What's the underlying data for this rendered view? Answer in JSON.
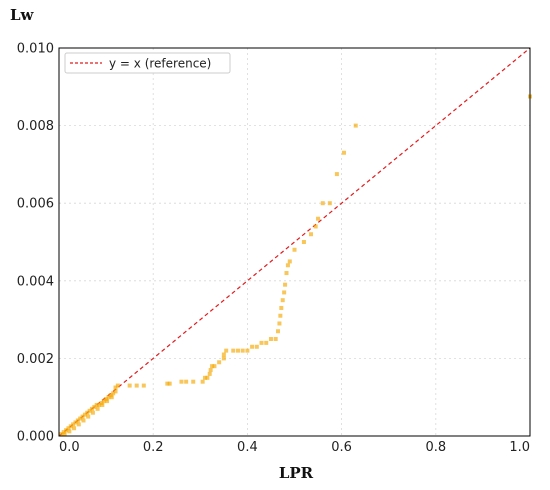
{
  "chart_data": {
    "type": "scatter",
    "title": "",
    "xlabel": "LPR",
    "ylabel": "Lw",
    "xlim": [
      0.0,
      1.0
    ],
    "ylim": [
      0.0,
      0.01
    ],
    "xticks": [
      "0.0",
      "0.2",
      "0.4",
      "0.6",
      "0.8",
      "1.0"
    ],
    "yticks": [
      "0.000",
      "0.002",
      "0.004",
      "0.006",
      "0.008",
      "0.010"
    ],
    "grid": true,
    "legend_position": "top-left",
    "reference_line": {
      "label": "y = x (reference)",
      "color": "#e41a1c",
      "style": "dashed",
      "from": [
        0,
        0
      ],
      "to": [
        1.0,
        0.01
      ]
    },
    "point_color": "#f5a800",
    "points": [
      [
        0.005,
        5e-05
      ],
      [
        0.01,
        0.0001
      ],
      [
        0.015,
        0.00015
      ],
      [
        0.02,
        0.0002
      ],
      [
        0.025,
        0.00025
      ],
      [
        0.03,
        0.0003
      ],
      [
        0.035,
        0.00035
      ],
      [
        0.04,
        0.0004
      ],
      [
        0.045,
        0.00045
      ],
      [
        0.05,
        0.0005
      ],
      [
        0.055,
        0.00055
      ],
      [
        0.06,
        0.0006
      ],
      [
        0.065,
        0.00065
      ],
      [
        0.07,
        0.0007
      ],
      [
        0.075,
        0.00075
      ],
      [
        0.08,
        0.0008
      ],
      [
        0.085,
        0.0008
      ],
      [
        0.09,
        0.00085
      ],
      [
        0.095,
        0.0009
      ],
      [
        0.1,
        0.00095
      ],
      [
        0.105,
        0.001
      ],
      [
        0.11,
        0.00105
      ],
      [
        0.115,
        0.0011
      ],
      [
        0.12,
        0.00115
      ],
      [
        0.012,
        5e-05
      ],
      [
        0.022,
        0.00012
      ],
      [
        0.032,
        0.0002
      ],
      [
        0.042,
        0.0003
      ],
      [
        0.052,
        0.0004
      ],
      [
        0.062,
        0.0005
      ],
      [
        0.072,
        0.0006
      ],
      [
        0.082,
        0.0007
      ],
      [
        0.092,
        0.0008
      ],
      [
        0.102,
        0.0009
      ],
      [
        0.112,
        0.001
      ],
      [
        0.12,
        0.00125
      ],
      [
        0.125,
        0.0013
      ],
      [
        0.15,
        0.0013
      ],
      [
        0.165,
        0.0013
      ],
      [
        0.18,
        0.0013
      ],
      [
        0.23,
        0.00135
      ],
      [
        0.235,
        0.00135
      ],
      [
        0.26,
        0.0014
      ],
      [
        0.27,
        0.0014
      ],
      [
        0.285,
        0.0014
      ],
      [
        0.305,
        0.0014
      ],
      [
        0.31,
        0.0015
      ],
      [
        0.315,
        0.0015
      ],
      [
        0.32,
        0.0016
      ],
      [
        0.322,
        0.0017
      ],
      [
        0.325,
        0.0018
      ],
      [
        0.33,
        0.0018
      ],
      [
        0.34,
        0.0019
      ],
      [
        0.35,
        0.002
      ],
      [
        0.35,
        0.0021
      ],
      [
        0.355,
        0.0022
      ],
      [
        0.37,
        0.0022
      ],
      [
        0.38,
        0.0022
      ],
      [
        0.39,
        0.0022
      ],
      [
        0.4,
        0.0022
      ],
      [
        0.41,
        0.0023
      ],
      [
        0.42,
        0.0023
      ],
      [
        0.43,
        0.0024
      ],
      [
        0.44,
        0.0024
      ],
      [
        0.45,
        0.0025
      ],
      [
        0.46,
        0.0025
      ],
      [
        0.465,
        0.0027
      ],
      [
        0.468,
        0.0029
      ],
      [
        0.47,
        0.0031
      ],
      [
        0.472,
        0.0033
      ],
      [
        0.475,
        0.0035
      ],
      [
        0.478,
        0.0037
      ],
      [
        0.48,
        0.0039
      ],
      [
        0.483,
        0.0042
      ],
      [
        0.486,
        0.0044
      ],
      [
        0.49,
        0.0045
      ],
      [
        0.5,
        0.0048
      ],
      [
        0.52,
        0.005
      ],
      [
        0.535,
        0.0052
      ],
      [
        0.545,
        0.0054
      ],
      [
        0.55,
        0.0056
      ],
      [
        0.56,
        0.006
      ],
      [
        0.575,
        0.006
      ],
      [
        0.59,
        0.00675
      ],
      [
        0.605,
        0.0073
      ],
      [
        0.63,
        0.008
      ],
      [
        1.0,
        0.00875
      ]
    ]
  }
}
